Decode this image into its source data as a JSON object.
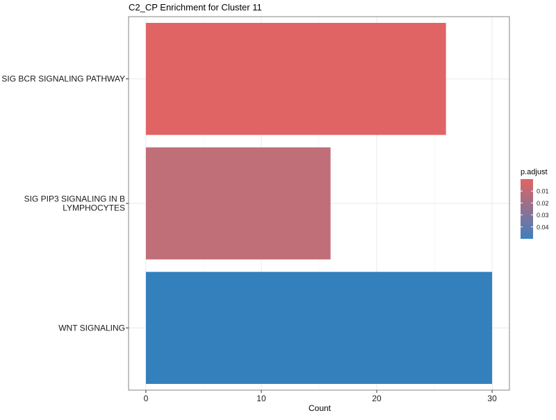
{
  "chart_data": {
    "type": "bar",
    "orientation": "horizontal",
    "title": "C2_CP Enrichment for Cluster 11",
    "xlabel": "Count",
    "ylabel": "",
    "xlim": [
      -1.5,
      31.5
    ],
    "x_ticks": [
      0,
      10,
      20,
      30
    ],
    "grid": true,
    "categories": [
      [
        "SIG BCR SIGNALING PATHWAY"
      ],
      [
        "SIG PIP3 SIGNALING IN B",
        "LYMPHOCYTES"
      ],
      [
        "WNT SIGNALING"
      ]
    ],
    "values": [
      26,
      16,
      30
    ],
    "p_adjust": [
      0.002,
      0.018,
      0.045
    ],
    "bar_colors": [
      "#E06464",
      "#C06E78",
      "#3480BD"
    ],
    "legend": {
      "title": "p.adjust",
      "placement": "right",
      "ticks": [
        0.01,
        0.02,
        0.03,
        0.04
      ],
      "tick_labels": [
        "0.01",
        "0.02",
        "0.03",
        "0.04"
      ],
      "range": [
        0.0,
        0.05
      ],
      "color_low": "#E06464",
      "color_high": "#3F7FBF"
    }
  }
}
